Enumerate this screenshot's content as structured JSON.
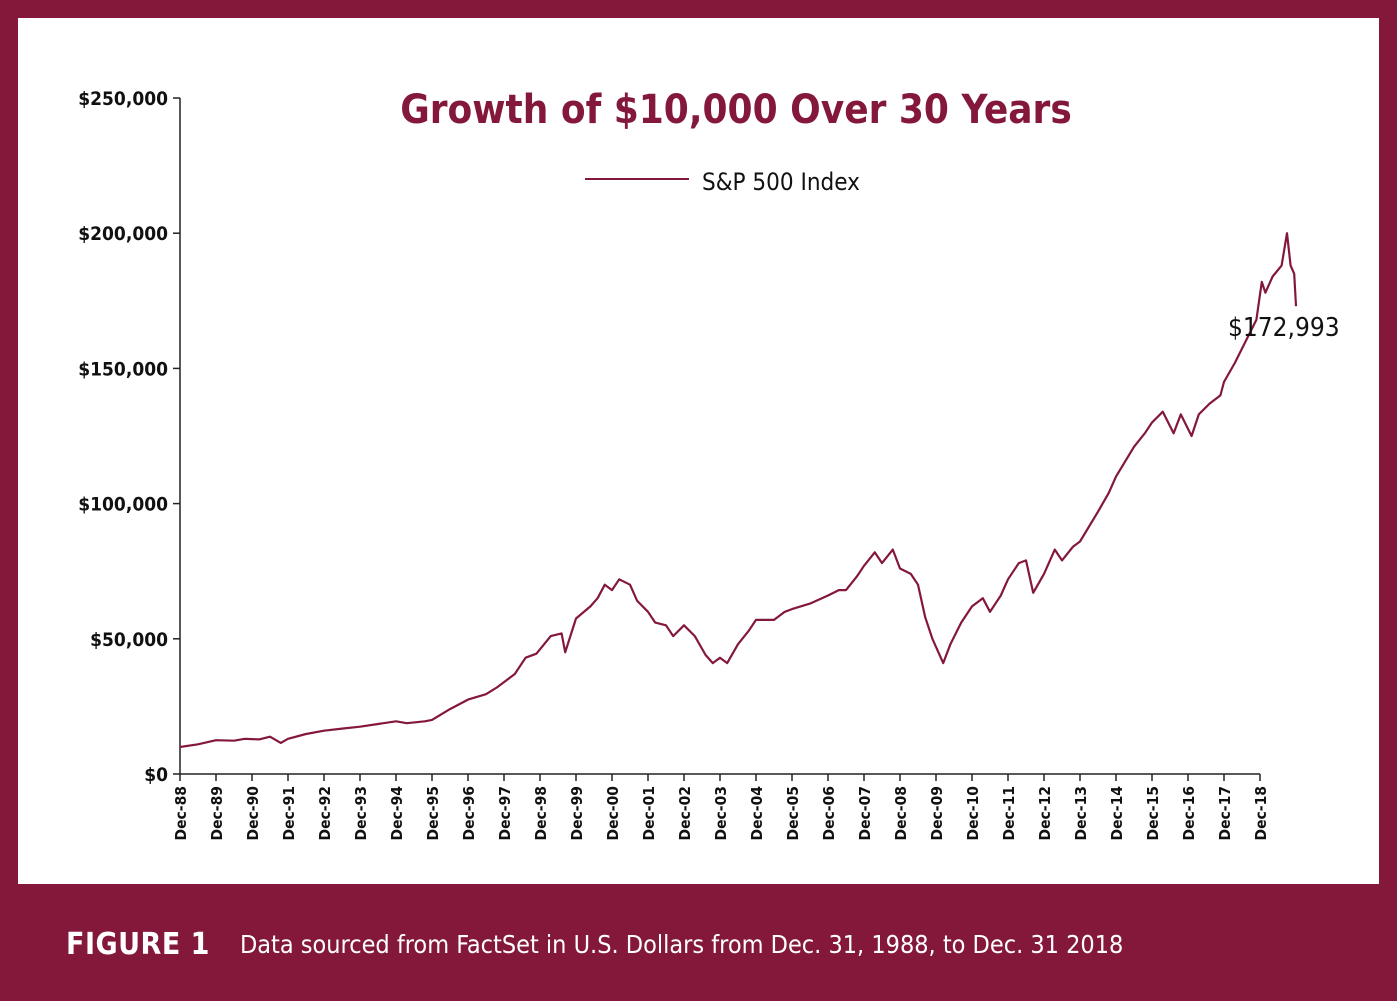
{
  "colors": {
    "brand": "#84183b",
    "line": "#84183b",
    "axis": "#222222",
    "text": "#111111"
  },
  "caption": {
    "label": "FIGURE 1",
    "text": "Data sourced from FactSet in U.S. Dollars from Dec. 31, 1988, to Dec. 31 2018"
  },
  "chart_data": {
    "type": "line",
    "title": "Growth of $10,000 Over 30 Years",
    "xlabel": "",
    "ylabel": "",
    "ylim": [
      0,
      250000
    ],
    "xlim": [
      1988,
      2018
    ],
    "grid": false,
    "legend": {
      "placement": "top-center",
      "entries": [
        "S&P 500 Index"
      ]
    },
    "y_ticks": [
      {
        "value": 0,
        "label": "$0"
      },
      {
        "value": 50000,
        "label": "$50,000"
      },
      {
        "value": 100000,
        "label": "$100,000"
      },
      {
        "value": 150000,
        "label": "$150,000"
      },
      {
        "value": 200000,
        "label": "$200,000"
      },
      {
        "value": 250000,
        "label": "$250,000"
      }
    ],
    "x_ticks": [
      "Dec-88",
      "Dec-89",
      "Dec-90",
      "Dec-91",
      "Dec-92",
      "Dec-93",
      "Dec-94",
      "Dec-95",
      "Dec-96",
      "Dec-97",
      "Dec-98",
      "Dec-99",
      "Dec-00",
      "Dec-01",
      "Dec-02",
      "Dec-03",
      "Dec-04",
      "Dec-05",
      "Dec-06",
      "Dec-07",
      "Dec-08",
      "Dec-09",
      "Dec-10",
      "Dec-11",
      "Dec-12",
      "Dec-13",
      "Dec-14",
      "Dec-15",
      "Dec-16",
      "Dec-17",
      "Dec-18"
    ],
    "annotations": [
      {
        "text": "$172,993",
        "x": 2018,
        "y": 172993
      }
    ],
    "series": [
      {
        "name": "S&P 500 Index",
        "points": [
          [
            1988.0,
            10000
          ],
          [
            1988.5,
            11000
          ],
          [
            1989.0,
            12500
          ],
          [
            1989.5,
            12300
          ],
          [
            1989.8,
            13000
          ],
          [
            1990.2,
            12800
          ],
          [
            1990.5,
            13800
          ],
          [
            1990.8,
            11500
          ],
          [
            1991.0,
            13000
          ],
          [
            1991.5,
            14800
          ],
          [
            1992.0,
            16000
          ],
          [
            1992.5,
            16800
          ],
          [
            1993.0,
            17500
          ],
          [
            1993.5,
            18500
          ],
          [
            1994.0,
            19500
          ],
          [
            1994.3,
            18800
          ],
          [
            1994.8,
            19500
          ],
          [
            1995.0,
            20000
          ],
          [
            1995.5,
            24000
          ],
          [
            1996.0,
            27500
          ],
          [
            1996.5,
            29500
          ],
          [
            1996.8,
            32000
          ],
          [
            1997.0,
            34000
          ],
          [
            1997.3,
            37000
          ],
          [
            1997.6,
            43000
          ],
          [
            1997.9,
            44500
          ],
          [
            1998.3,
            51000
          ],
          [
            1998.6,
            52000
          ],
          [
            1998.7,
            45000
          ],
          [
            1999.0,
            57500
          ],
          [
            1999.4,
            62000
          ],
          [
            1999.6,
            65000
          ],
          [
            1999.8,
            70000
          ],
          [
            2000.0,
            68000
          ],
          [
            2000.2,
            72000
          ],
          [
            2000.5,
            70000
          ],
          [
            2000.7,
            64000
          ],
          [
            2001.0,
            60000
          ],
          [
            2001.2,
            56000
          ],
          [
            2001.5,
            55000
          ],
          [
            2001.7,
            51000
          ],
          [
            2002.0,
            55000
          ],
          [
            2002.3,
            51000
          ],
          [
            2002.6,
            44000
          ],
          [
            2002.8,
            41000
          ],
          [
            2003.0,
            43000
          ],
          [
            2003.2,
            41000
          ],
          [
            2003.5,
            48000
          ],
          [
            2003.8,
            53000
          ],
          [
            2004.0,
            57000
          ],
          [
            2004.5,
            57000
          ],
          [
            2004.8,
            60000
          ],
          [
            2005.0,
            61000
          ],
          [
            2005.5,
            63000
          ],
          [
            2006.0,
            66000
          ],
          [
            2006.3,
            68000
          ],
          [
            2006.5,
            68000
          ],
          [
            2006.8,
            73000
          ],
          [
            2007.0,
            77000
          ],
          [
            2007.3,
            82000
          ],
          [
            2007.5,
            78000
          ],
          [
            2007.8,
            83000
          ],
          [
            2008.0,
            76000
          ],
          [
            2008.3,
            74000
          ],
          [
            2008.5,
            70000
          ],
          [
            2008.7,
            58000
          ],
          [
            2008.9,
            50000
          ],
          [
            2009.2,
            41000
          ],
          [
            2009.4,
            48000
          ],
          [
            2009.7,
            56000
          ],
          [
            2010.0,
            62000
          ],
          [
            2010.3,
            65000
          ],
          [
            2010.5,
            60000
          ],
          [
            2010.8,
            66000
          ],
          [
            2011.0,
            72000
          ],
          [
            2011.3,
            78000
          ],
          [
            2011.5,
            79000
          ],
          [
            2011.7,
            67000
          ],
          [
            2012.0,
            74000
          ],
          [
            2012.3,
            83000
          ],
          [
            2012.5,
            79000
          ],
          [
            2012.8,
            84000
          ],
          [
            2013.0,
            86000
          ],
          [
            2013.5,
            97000
          ],
          [
            2013.8,
            104000
          ],
          [
            2014.0,
            110000
          ],
          [
            2014.5,
            121000
          ],
          [
            2014.8,
            126000
          ],
          [
            2015.0,
            130000
          ],
          [
            2015.3,
            134000
          ],
          [
            2015.6,
            126000
          ],
          [
            2015.8,
            133000
          ],
          [
            2016.1,
            125000
          ],
          [
            2016.3,
            133000
          ],
          [
            2016.6,
            137000
          ],
          [
            2016.9,
            140000
          ],
          [
            2017.0,
            145000
          ],
          [
            2017.3,
            152000
          ],
          [
            2017.6,
            160000
          ],
          [
            2017.9,
            168000
          ],
          [
            2018.05,
            182000
          ],
          [
            2018.15,
            178000
          ],
          [
            2018.35,
            184000
          ],
          [
            2018.6,
            188000
          ],
          [
            2018.75,
            200000
          ],
          [
            2018.85,
            188000
          ],
          [
            2018.95,
            185000
          ],
          [
            2019.0,
            172993
          ]
        ]
      }
    ]
  }
}
